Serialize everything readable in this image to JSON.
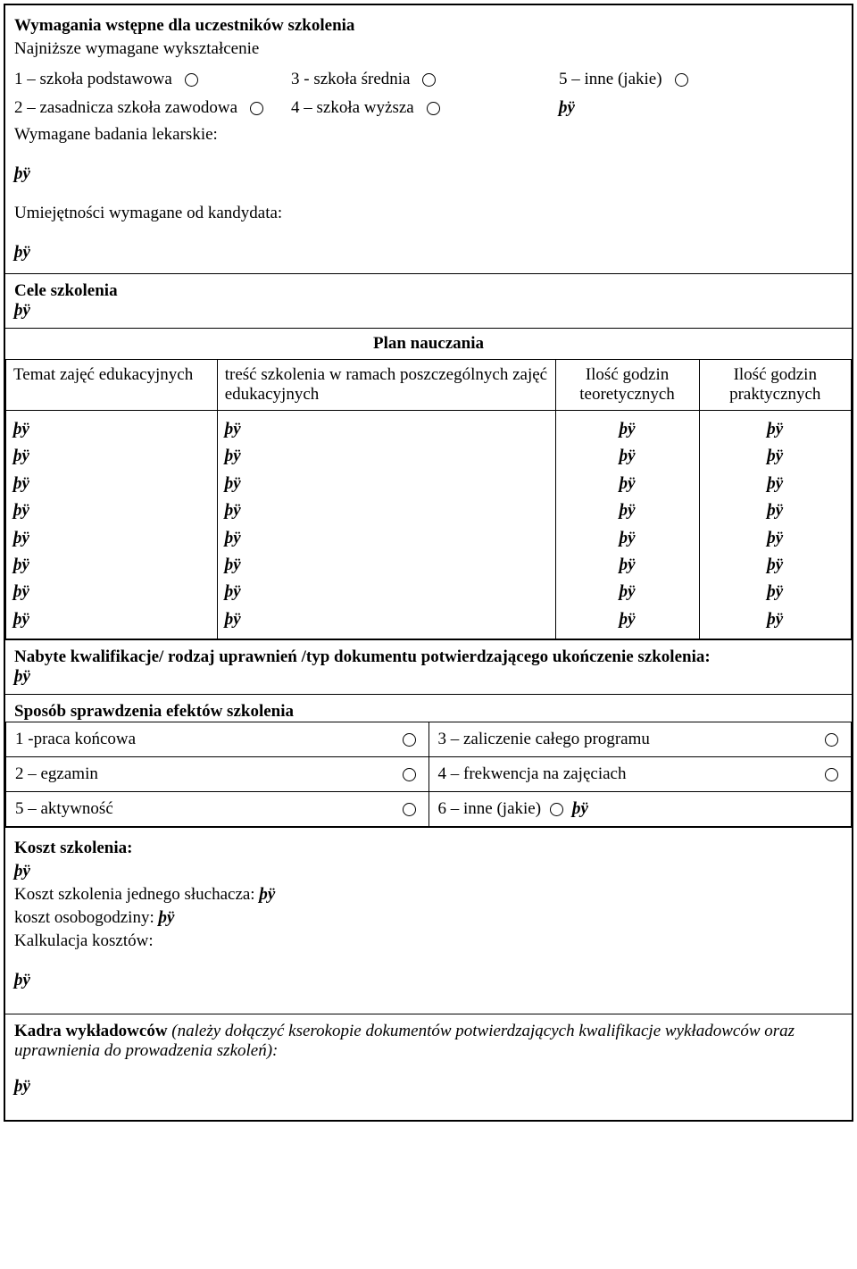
{
  "placeholder": "þÿ",
  "requirements": {
    "heading": "Wymagania wstępne dla uczestników szkolenia",
    "sub_edu": "Najniższe wymagane wykształcenie",
    "edu1": "1 – szkoła    podstawowa",
    "edu2": "2 – zasadnicza szkoła zawodowa",
    "edu3": "3  - szkoła średnia",
    "edu4": "4 – szkoła wyższa",
    "edu5": "5 – inne (jakie)",
    "medical": "Wymagane badania lekarskie:",
    "skills": "Umiejętności wymagane od kandydata:"
  },
  "goals": {
    "heading": "Cele szkolenia"
  },
  "plan": {
    "title": "Plan nauczania",
    "col1": "Temat zajęć edukacyjnych",
    "col2": "treść szkolenia w ramach poszczególnych zajęć edukacyjnych",
    "col3": "Ilość godzin teoretycznych",
    "col4": "Ilość godzin praktycznych",
    "row_count": 8
  },
  "qualifications": {
    "text": "Nabyte kwalifikacje/ rodzaj uprawnień /typ dokumentu potwierdzającego ukończenie szkolenia:"
  },
  "verify": {
    "heading": "Sposób sprawdzenia efektów szkolenia",
    "opt1": "1 -praca końcowa",
    "opt2": "2 – egzamin",
    "opt3": "3 – zaliczenie całego programu",
    "opt4": "4 – frekwencja na zajęciach",
    "opt5": "5 – aktywność",
    "opt6": "6 – inne (jakie)"
  },
  "cost": {
    "heading": "Koszt szkolenia:",
    "per_person": "Koszt szkolenia jednego słuchacza:",
    "per_hour": "koszt osobogodziny:",
    "calc": "Kalkulacja kosztów:"
  },
  "lecturers": {
    "heading": "Kadra wykładowców",
    "note": "(należy dołączyć kserokopie dokumentów potwierdzających kwalifikacje wykładowców oraz uprawnienia do prowadzenia szkoleń):"
  }
}
